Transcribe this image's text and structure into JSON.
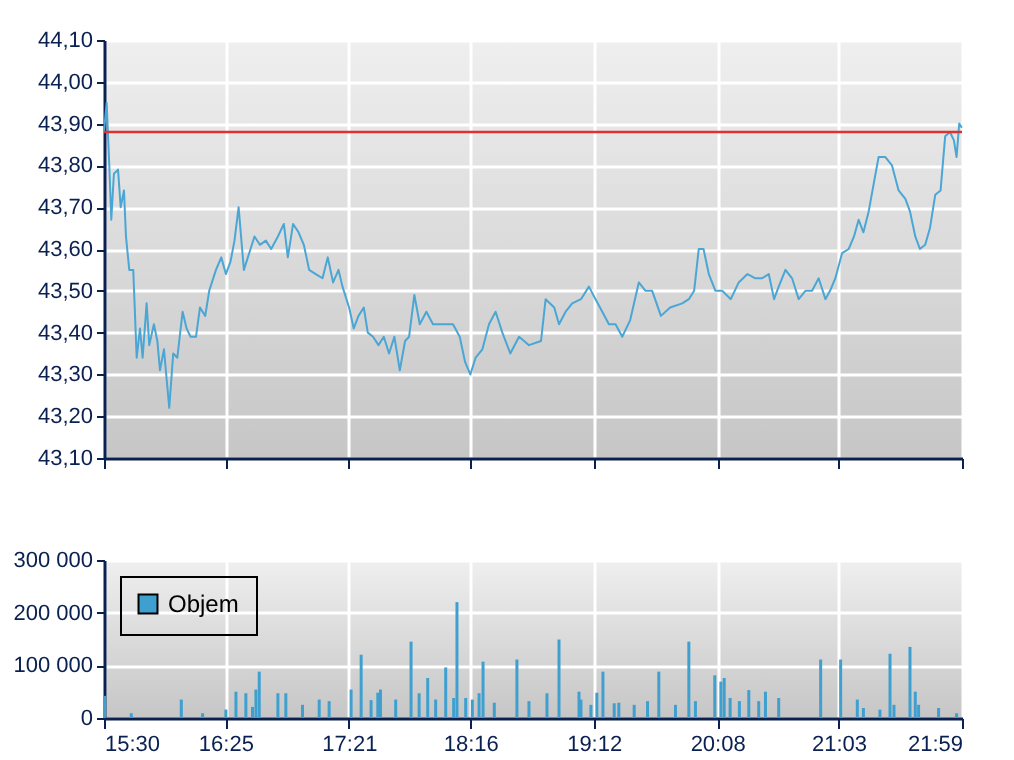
{
  "chart_data": [
    {
      "type": "line",
      "x": [
        15.5,
        15.52,
        15.54,
        15.555,
        15.575,
        15.606,
        15.626,
        15.651,
        15.666,
        15.691,
        15.721,
        15.747,
        15.772,
        15.792,
        15.822,
        15.842,
        15.877,
        15.903,
        15.923,
        15.953,
        15.993,
        16.023,
        16.054,
        16.094,
        16.124,
        16.154,
        16.195,
        16.225,
        16.265,
        16.295,
        16.346,
        16.386,
        16.421,
        16.456,
        16.486,
        16.517,
        16.557,
        16.597,
        16.637,
        16.678,
        16.723,
        16.763,
        16.814,
        16.859,
        16.889,
        16.929,
        16.97,
        17.01,
        17.05,
        17.1,
        17.151,
        17.191,
        17.231,
        17.272,
        17.302,
        17.352,
        17.387,
        17.423,
        17.463,
        17.493,
        17.533,
        17.574,
        17.614,
        17.654,
        17.694,
        17.735,
        17.775,
        17.805,
        17.845,
        17.886,
        17.936,
        17.986,
        18.037,
        18.087,
        18.137,
        18.188,
        18.228,
        18.268,
        18.308,
        18.359,
        18.409,
        18.459,
        18.51,
        18.57,
        18.636,
        18.711,
        18.802,
        18.837,
        18.902,
        18.938,
        18.988,
        19.038,
        19.104,
        19.164,
        19.214,
        19.265,
        19.315,
        19.365,
        19.416,
        19.476,
        19.541,
        19.592,
        19.642,
        19.708,
        19.778,
        19.869,
        19.919,
        19.959,
        19.994,
        20.03,
        20.07,
        20.12,
        20.171,
        20.236,
        20.296,
        20.362,
        20.422,
        20.473,
        20.523,
        20.563,
        20.598,
        20.649,
        20.699,
        20.749,
        20.8,
        20.85,
        20.9,
        20.951,
        20.986,
        21.026,
        21.077,
        21.127,
        21.167,
        21.202,
        21.238,
        21.278,
        21.318,
        21.353,
        21.404,
        21.454,
        21.504,
        21.555,
        21.59,
        21.63,
        21.665,
        21.705,
        21.741,
        21.781,
        21.821,
        21.856,
        21.892,
        21.922,
        21.942,
        21.962,
        21.982
      ],
      "series": [
        {
          "color": "#4aa6d4",
          "values": [
            43.88,
            43.95,
            43.8,
            43.67,
            43.78,
            43.79,
            43.7,
            43.74,
            43.63,
            43.55,
            43.55,
            43.34,
            43.41,
            43.34,
            43.47,
            43.37,
            43.42,
            43.38,
            43.31,
            43.36,
            43.22,
            43.35,
            43.34,
            43.45,
            43.41,
            43.39,
            43.39,
            43.46,
            43.44,
            43.5,
            43.55,
            43.58,
            43.54,
            43.57,
            43.62,
            43.7,
            43.55,
            43.59,
            43.63,
            43.61,
            43.62,
            43.6,
            43.63,
            43.66,
            43.58,
            43.66,
            43.64,
            43.61,
            43.55,
            43.54,
            43.53,
            43.58,
            43.52,
            43.55,
            43.51,
            43.46,
            43.41,
            43.44,
            43.46,
            43.4,
            43.39,
            43.37,
            43.39,
            43.35,
            43.39,
            43.31,
            43.38,
            43.39,
            43.49,
            43.42,
            43.45,
            43.42,
            43.42,
            43.42,
            43.42,
            43.39,
            43.33,
            43.3,
            43.34,
            43.36,
            43.42,
            43.45,
            43.4,
            43.35,
            43.39,
            43.37,
            43.38,
            43.48,
            43.46,
            43.42,
            43.45,
            43.47,
            43.48,
            43.51,
            43.48,
            43.45,
            43.42,
            43.42,
            43.39,
            43.43,
            43.52,
            43.5,
            43.5,
            43.44,
            43.46,
            43.47,
            43.48,
            43.5,
            43.6,
            43.6,
            43.54,
            43.5,
            43.5,
            43.48,
            43.52,
            43.54,
            43.53,
            43.53,
            43.54,
            43.48,
            43.51,
            43.55,
            43.53,
            43.48,
            43.5,
            43.5,
            43.53,
            43.48,
            43.5,
            43.53,
            43.59,
            43.6,
            43.63,
            43.67,
            43.64,
            43.69,
            43.76,
            43.82,
            43.82,
            43.8,
            43.74,
            43.72,
            43.69,
            43.63,
            43.6,
            43.61,
            43.65,
            43.73,
            43.74,
            43.87,
            43.88,
            43.86,
            43.82,
            43.9,
            43.89
          ]
        }
      ],
      "xlim": [
        15.5,
        21.983
      ],
      "xticks": [
        {
          "value": 15.5,
          "label": null
        },
        {
          "value": 16.417,
          "label": null
        },
        {
          "value": 17.35,
          "label": null
        },
        {
          "value": 18.267,
          "label": null
        },
        {
          "value": 19.2,
          "label": null
        },
        {
          "value": 20.133,
          "label": null
        },
        {
          "value": 21.05,
          "label": null
        },
        {
          "value": 21.983,
          "label": null
        }
      ],
      "ylim": [
        43.1,
        44.1
      ],
      "yticks": [
        {
          "value": 43.1,
          "label": "43,10"
        },
        {
          "value": 43.2,
          "label": "43,20"
        },
        {
          "value": 43.3,
          "label": "43,30"
        },
        {
          "value": 43.4,
          "label": "43,40"
        },
        {
          "value": 43.5,
          "label": "43,50"
        },
        {
          "value": 43.6,
          "label": "43,60"
        },
        {
          "value": 43.7,
          "label": "43,70"
        },
        {
          "value": 43.8,
          "label": "43,80"
        },
        {
          "value": 43.9,
          "label": "43,90"
        },
        {
          "value": 44.0,
          "label": "44,00"
        },
        {
          "value": 44.1,
          "label": "44,10"
        }
      ],
      "ref_lines": [
        {
          "axis": "y",
          "value": 43.88,
          "color": "#e03030"
        }
      ],
      "grid": true,
      "tick_labels": "y"
    },
    {
      "type": "bar",
      "x": [
        15.505,
        15.706,
        16.084,
        16.245,
        16.421,
        16.497,
        16.572,
        16.622,
        16.648,
        16.673,
        16.814,
        16.874,
        17.0,
        17.126,
        17.201,
        17.367,
        17.443,
        17.518,
        17.569,
        17.589,
        17.704,
        17.82,
        17.881,
        17.946,
        18.006,
        18.082,
        18.142,
        18.167,
        18.233,
        18.283,
        18.334,
        18.364,
        18.449,
        18.62,
        18.711,
        18.847,
        18.938,
        19.089,
        19.104,
        19.179,
        19.224,
        19.27,
        19.355,
        19.39,
        19.506,
        19.607,
        19.692,
        19.818,
        19.919,
        19.969,
        20.115,
        20.161,
        20.186,
        20.231,
        20.301,
        20.372,
        20.447,
        20.498,
        20.598,
        20.915,
        21.066,
        21.192,
        21.238,
        21.363,
        21.439,
        21.469,
        21.59,
        21.63,
        21.655,
        21.806,
        21.942
      ],
      "series": [
        {
          "name": "Objem",
          "color": "#3fa0d0",
          "values": [
            42000,
            9000,
            35000,
            9000,
            16000,
            50000,
            47000,
            21000,
            54000,
            88000,
            47000,
            47000,
            25000,
            35000,
            32000,
            54000,
            120000,
            34000,
            48000,
            54000,
            35000,
            145000,
            47000,
            76000,
            35000,
            96000,
            38000,
            220000,
            38000,
            35000,
            47000,
            107000,
            29000,
            111000,
            32000,
            47000,
            149000,
            50000,
            35000,
            25000,
            48000,
            88000,
            28000,
            29000,
            25000,
            32000,
            88000,
            25000,
            145000,
            32000,
            81000,
            69000,
            76000,
            38000,
            32000,
            53000,
            32000,
            50000,
            38000,
            111000,
            111000,
            35000,
            19000,
            16000,
            122000,
            25000,
            135000,
            50000,
            25000,
            19000,
            9000
          ]
        }
      ],
      "xlim": [
        15.5,
        21.983
      ],
      "xticks": [
        {
          "value": 15.5,
          "label": "15:30"
        },
        {
          "value": 16.417,
          "label": "16:25"
        },
        {
          "value": 17.35,
          "label": "17:21"
        },
        {
          "value": 18.267,
          "label": "18:16"
        },
        {
          "value": 19.2,
          "label": "19:12"
        },
        {
          "value": 20.133,
          "label": "20:08"
        },
        {
          "value": 21.05,
          "label": "21:03"
        },
        {
          "value": 21.983,
          "label": "21:59"
        }
      ],
      "ylim": [
        0,
        300000
      ],
      "yticks": [
        0,
        {
          "value": 100000,
          "label": "100 000"
        },
        {
          "value": 200000,
          "label": "200 000"
        },
        {
          "value": 300000,
          "label": "300 000"
        }
      ],
      "grid": true,
      "legend": "top left"
    }
  ]
}
